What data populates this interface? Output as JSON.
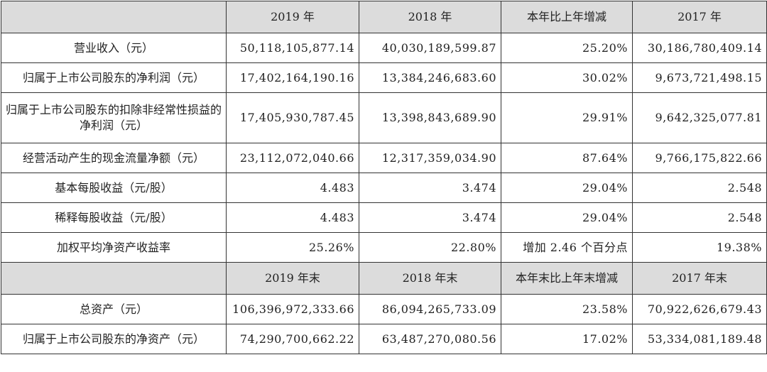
{
  "table": {
    "sections": [
      {
        "header": [
          "",
          "2019 年",
          "2018 年",
          "本年比上年增减",
          "2017 年"
        ],
        "rows": [
          [
            "营业收入（元）",
            "50,118,105,877.14",
            "40,030,189,599.87",
            "25.20%",
            "30,186,780,409.14"
          ],
          [
            "归属于上市公司股东的净利润（元）",
            "17,402,164,190.16",
            "13,384,246,683.60",
            "30.02%",
            "9,673,721,498.15"
          ],
          [
            "归属于上市公司股东的扣除非经常性损益的净利润（元）",
            "17,405,930,787.45",
            "13,398,843,689.90",
            "29.91%",
            "9,642,325,077.81"
          ],
          [
            "经营活动产生的现金流量净额（元）",
            "23,112,072,040.66",
            "12,317,359,034.90",
            "87.64%",
            "9,766,175,822.66"
          ],
          [
            "基本每股收益（元/股）",
            "4.483",
            "3.474",
            "29.04%",
            "2.548"
          ],
          [
            "稀释每股收益（元/股）",
            "4.483",
            "3.474",
            "29.04%",
            "2.548"
          ],
          [
            "加权平均净资产收益率",
            "25.26%",
            "22.80%",
            "增加 2.46 个百分点",
            "19.38%"
          ]
        ]
      },
      {
        "header": [
          "",
          "2019 年末",
          "2018 年末",
          "本年末比上年末增减",
          "2017 年末"
        ],
        "rows": [
          [
            "总资产（元）",
            "106,396,972,333.66",
            "86,094,265,733.09",
            "23.58%",
            "70,922,626,679.43"
          ],
          [
            "归属于上市公司股东的净资产（元）",
            "74,290,700,662.22",
            "63,487,270,080.56",
            "17.02%",
            "53,334,081,189.48"
          ]
        ]
      }
    ]
  }
}
